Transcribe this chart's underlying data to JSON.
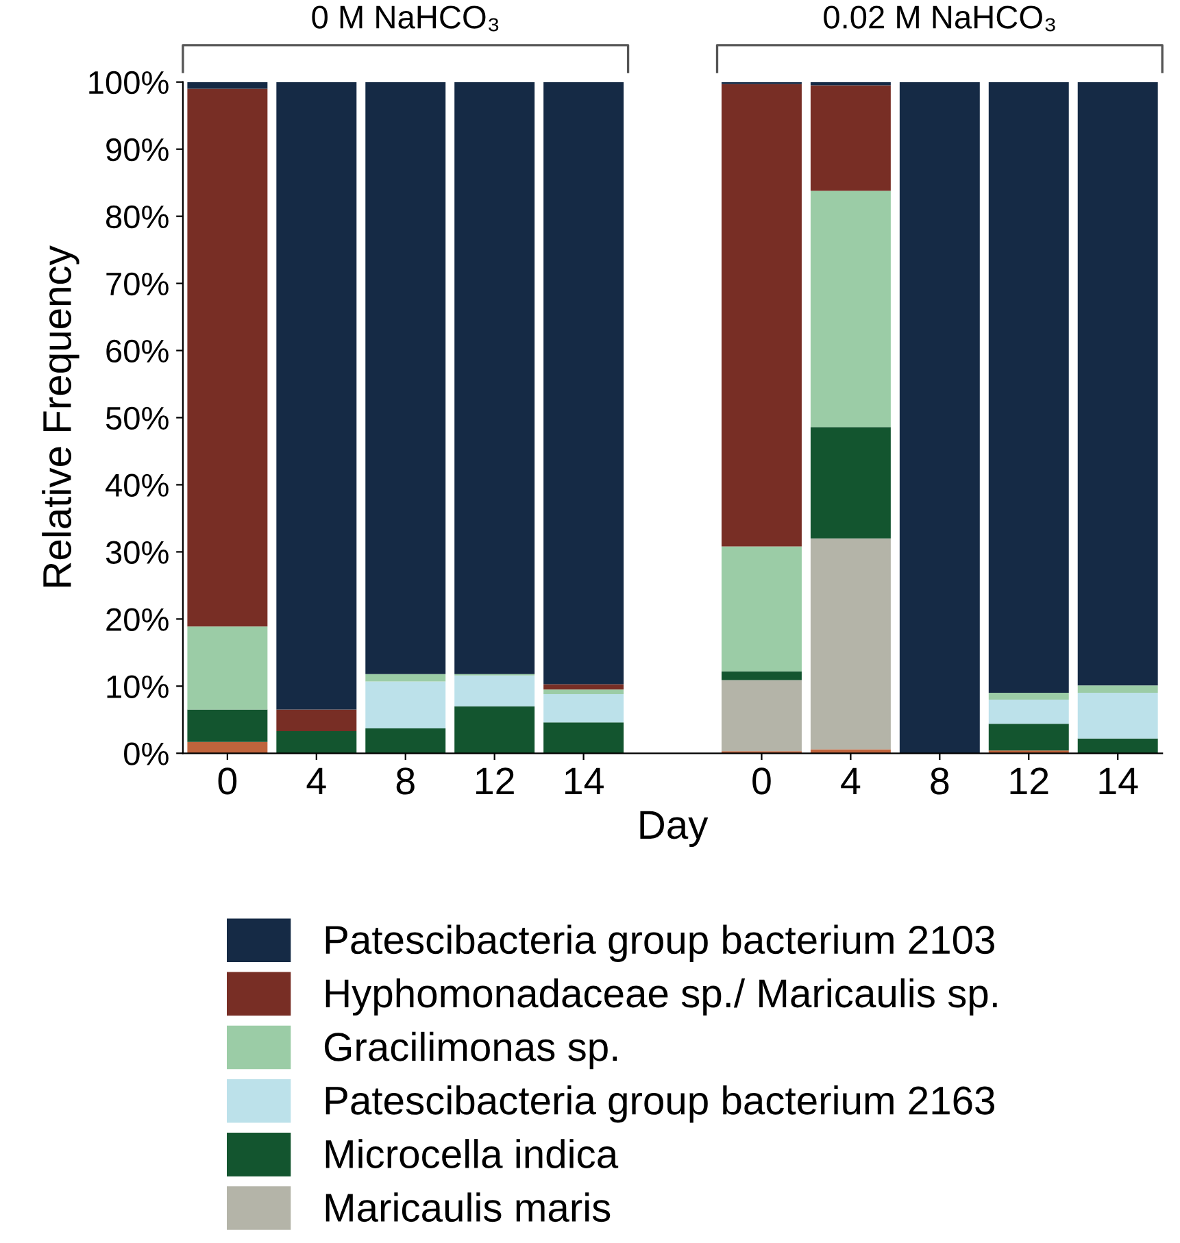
{
  "chart_data": {
    "type": "bar",
    "stacked": true,
    "xlabel": "Day",
    "ylabel": "Relative Frequency",
    "categories": [
      "0",
      "4",
      "8",
      "12",
      "14",
      null,
      "0",
      "4",
      "8",
      "12",
      "14"
    ],
    "series": [
      {
        "color": "#c0643c",
        "values": [
          1.7,
          0,
          0,
          0,
          0,
          null,
          0.3,
          0.6,
          0,
          0.4,
          0
        ]
      },
      {
        "name": "Maricaulis maris",
        "color": "#b4b4a8",
        "values": [
          0,
          0,
          0,
          0,
          0,
          null,
          10.6,
          31.4,
          0,
          0,
          0
        ]
      },
      {
        "name": "Microcella indica",
        "color": "#13552f",
        "values": [
          4.8,
          3.3,
          3.7,
          7.0,
          4.6,
          null,
          1.3,
          16.6,
          0,
          4.0,
          2.2
        ]
      },
      {
        "name": "Patescibacteria group bacterium 2163",
        "color": "#bce1ea",
        "values": [
          0,
          0,
          7.0,
          4.6,
          4.2,
          null,
          0,
          0,
          0,
          3.6,
          6.8
        ]
      },
      {
        "name": "Gracilimonas sp.",
        "color": "#9bcca6",
        "values": [
          12.4,
          0,
          1.1,
          0.2,
          0.7,
          null,
          18.6,
          35.2,
          0,
          1.0,
          1.1
        ]
      },
      {
        "name": "Hyphomonadaceae sp./ Maricaulis sp.",
        "color": "#782e25",
        "values": [
          80.1,
          3.2,
          0,
          0,
          0.8,
          null,
          68.9,
          15.7,
          0,
          0,
          0
        ]
      },
      {
        "name": "Patescibacteria group bacterium 2103",
        "color": "#152a45",
        "values": [
          1.0,
          93.5,
          88.2,
          88.2,
          89.7,
          null,
          0.3,
          0.5,
          100,
          91.0,
          89.9
        ]
      }
    ],
    "ylim": [
      0,
      100
    ],
    "yticks": [
      {
        "value": 0,
        "label": "0%"
      },
      {
        "value": 10,
        "label": "10%"
      },
      {
        "value": 20,
        "label": "20%"
      },
      {
        "value": 30,
        "label": "30%"
      },
      {
        "value": 40,
        "label": "40%"
      },
      {
        "value": 50,
        "label": "50%"
      },
      {
        "value": 60,
        "label": "60%"
      },
      {
        "value": 70,
        "label": "70%"
      },
      {
        "value": 80,
        "label": "80%"
      },
      {
        "value": 90,
        "label": "90%"
      },
      {
        "value": 100,
        "label": "100%"
      }
    ],
    "annotations": [
      "0 M NaHCO₃",
      "0.02 M NaHCO₃"
    ],
    "legend": "bottom",
    "grid": false
  }
}
